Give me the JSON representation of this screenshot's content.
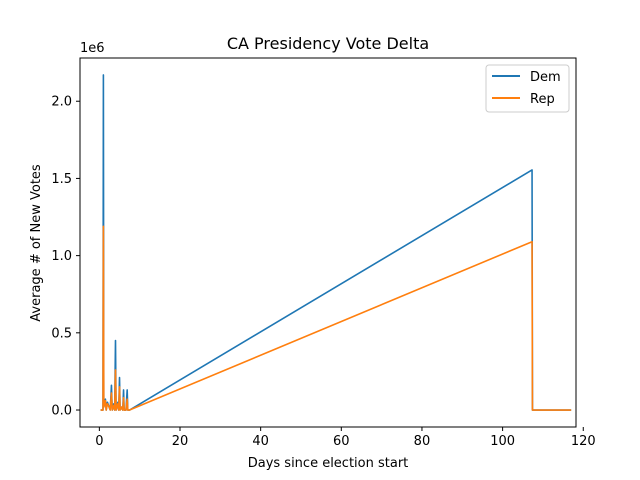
{
  "chart_data": {
    "type": "line",
    "title": "CA Presidency Vote Delta",
    "xlabel": "Days since election start",
    "ylabel": "Average # of New Votes",
    "y_offset_label": "1e6",
    "xlim": [
      -4.8,
      118.2
    ],
    "ylim": [
      -0.11,
      2.28
    ],
    "y_scale": 1000000,
    "xticks": [
      0,
      20,
      40,
      60,
      80,
      100,
      120
    ],
    "yticks": [
      0.0,
      0.5,
      1.0,
      1.5,
      2.0
    ],
    "ytick_labels": [
      "0.0",
      "0.5",
      "1.0",
      "1.5",
      "2.0"
    ],
    "grid": false,
    "legend": {
      "position": "top-right"
    },
    "series": [
      {
        "name": "Dem",
        "color": "#1f77b4",
        "points": [
          [
            0.3,
            0
          ],
          [
            0.9,
            0
          ],
          [
            1.0,
            2.17
          ],
          [
            1.1,
            0.02
          ],
          [
            1.5,
            0.07
          ],
          [
            1.7,
            0.0
          ],
          [
            2.0,
            0.05
          ],
          [
            2.4,
            0.02
          ],
          [
            2.7,
            0.0
          ],
          [
            3.0,
            0.16
          ],
          [
            3.2,
            0.0
          ],
          [
            3.6,
            0.04
          ],
          [
            3.8,
            0.0
          ],
          [
            4.0,
            0.45
          ],
          [
            4.15,
            0.0
          ],
          [
            4.6,
            0.05
          ],
          [
            4.8,
            0.0
          ],
          [
            5.0,
            0.21
          ],
          [
            5.15,
            0.0
          ],
          [
            5.6,
            0.02
          ],
          [
            5.8,
            0.0
          ],
          [
            6.0,
            0.13
          ],
          [
            6.15,
            0.0
          ],
          [
            6.6,
            0.0
          ],
          [
            6.9,
            0.13
          ],
          [
            7.05,
            0.0
          ],
          [
            7.5,
            0.0
          ],
          [
            107.3,
            1.555
          ],
          [
            107.4,
            0.0
          ],
          [
            117.0,
            0.0
          ]
        ]
      },
      {
        "name": "Rep",
        "color": "#ff7f0e",
        "points": [
          [
            0.3,
            0
          ],
          [
            0.9,
            0
          ],
          [
            1.0,
            1.19
          ],
          [
            1.1,
            0.02
          ],
          [
            1.5,
            0.06
          ],
          [
            1.7,
            0.0
          ],
          [
            2.0,
            0.04
          ],
          [
            2.4,
            0.02
          ],
          [
            2.7,
            0.0
          ],
          [
            3.0,
            0.11
          ],
          [
            3.2,
            0.0
          ],
          [
            3.6,
            0.03
          ],
          [
            3.8,
            0.0
          ],
          [
            4.0,
            0.26
          ],
          [
            4.15,
            0.0
          ],
          [
            4.6,
            0.04
          ],
          [
            4.8,
            0.0
          ],
          [
            5.0,
            0.15
          ],
          [
            5.15,
            0.0
          ],
          [
            5.6,
            0.02
          ],
          [
            5.8,
            0.0
          ],
          [
            6.0,
            0.08
          ],
          [
            6.15,
            0.0
          ],
          [
            6.6,
            0.0
          ],
          [
            6.9,
            0.07
          ],
          [
            7.05,
            0.0
          ],
          [
            7.5,
            0.0
          ],
          [
            107.3,
            1.09
          ],
          [
            107.4,
            0.0
          ],
          [
            117.0,
            0.0
          ]
        ]
      }
    ]
  }
}
